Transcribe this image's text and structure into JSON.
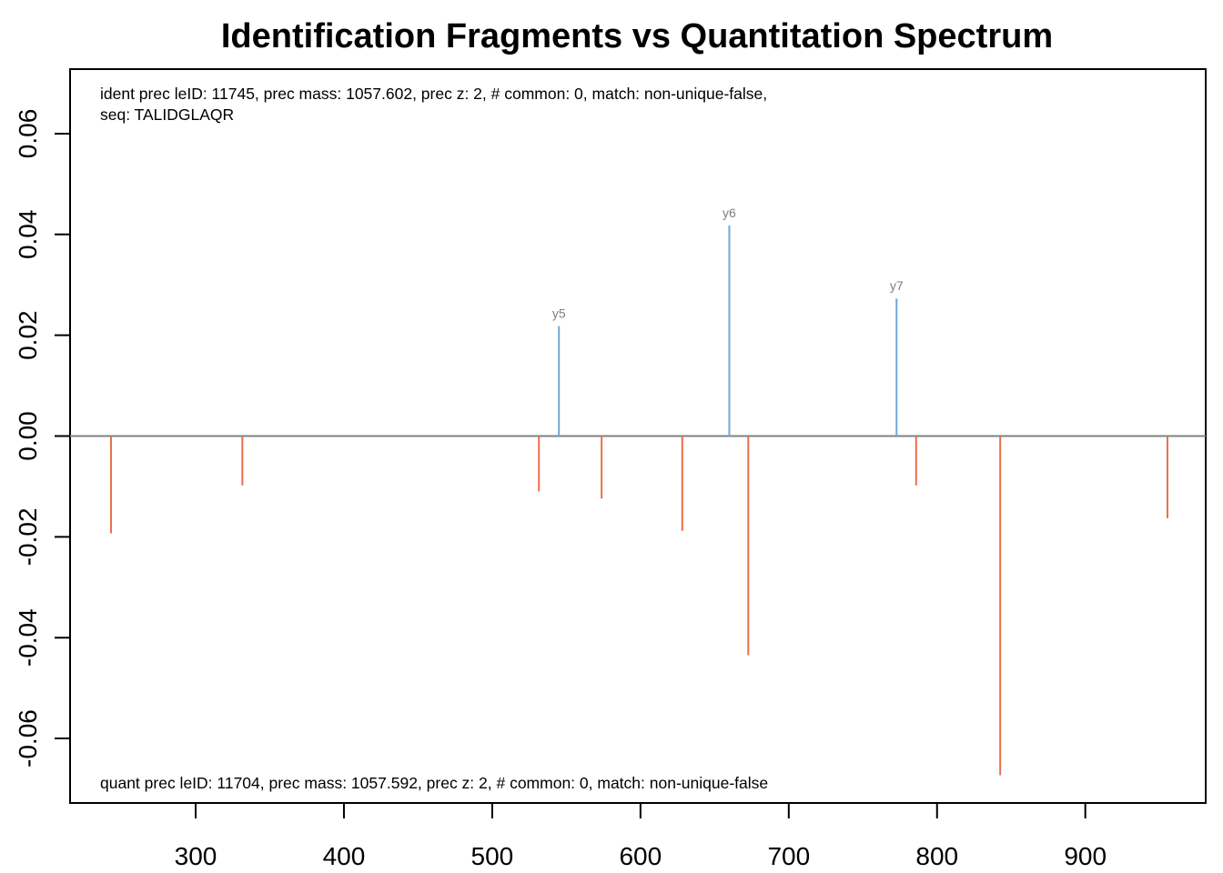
{
  "chart_data": {
    "type": "bar",
    "title": "Identification Fragments vs Quantitation Spectrum",
    "xlabel": "",
    "ylabel": "",
    "xlim": [
      215.3,
      981.2
    ],
    "ylim": [
      -0.0728,
      0.0728
    ],
    "x_ticks": [
      300,
      400,
      500,
      600,
      700,
      800,
      900
    ],
    "y_ticks": [
      -0.06,
      -0.04,
      -0.02,
      0.0,
      0.02,
      0.04,
      0.06
    ],
    "y_tick_labels": [
      "-0.06",
      "-0.04",
      "-0.02",
      "0.00",
      "0.02",
      "0.04",
      "0.06"
    ],
    "grid": false,
    "colors": {
      "identification": "#6fa8dc",
      "quantitation": "#e8704a",
      "baseline": "#808080",
      "peak_label": "#7f7f7f"
    },
    "series": [
      {
        "values_x": [
          545.0,
          659.9,
          772.7
        ],
        "values_y": [
          0.0218,
          0.0418,
          0.0273
        ],
        "labels": [
          "y5",
          "y6",
          "y7"
        ]
      },
      {
        "values_x": [
          242.9,
          331.5,
          531.5,
          573.8,
          628.2,
          672.7,
          785.9,
          842.6,
          955.4
        ],
        "values_y": [
          -0.0193,
          -0.0098,
          -0.011,
          -0.0124,
          -0.0188,
          -0.0435,
          -0.0098,
          -0.0673,
          -0.0163
        ],
        "labels": []
      }
    ],
    "annotations": {
      "ident_line1": "ident prec leID: 11745, prec mass: 1057.602, prec z: 2, # common: 0, match: non-unique-false,",
      "ident_line2": "seq: TALIDGLAQR",
      "quant_line": "quant prec leID: 11704, prec mass: 1057.592, prec z: 2, # common: 0, match: non-unique-false"
    }
  }
}
